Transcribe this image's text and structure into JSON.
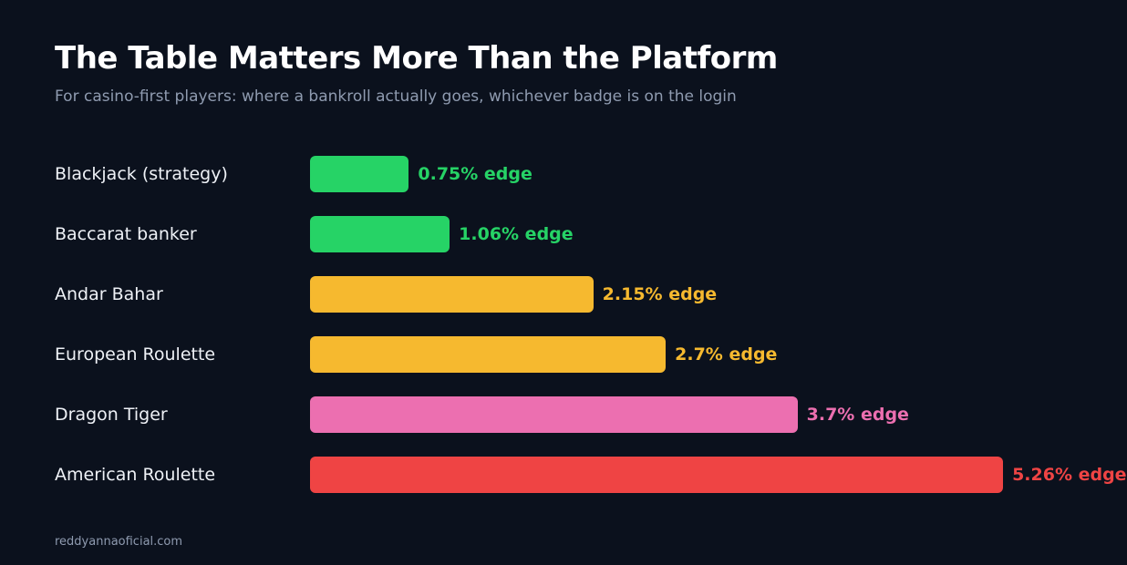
{
  "header": {
    "title": "The Table Matters More Than the Platform",
    "subtitle": "For casino-first players: where a bankroll actually goes, whichever badge is on the login"
  },
  "footer": {
    "source": "reddyannaoficial.com"
  },
  "colors": {
    "background": "#0b111d",
    "green": "#26d366",
    "amber": "#f6b92f",
    "pink": "#ec6fb0",
    "red": "#ef4444"
  },
  "chart_data": {
    "type": "bar",
    "orientation": "horizontal",
    "title": "The Table Matters More Than the Platform",
    "subtitle": "For casino-first players: where a bankroll actually goes, whichever badge is on the login",
    "unit": "% edge",
    "xlim": [
      0,
      5.5
    ],
    "grid": false,
    "categories": [
      "Blackjack (strategy)",
      "Baccarat banker",
      "Andar Bahar",
      "European Roulette",
      "Dragon Tiger",
      "American Roulette"
    ],
    "values": [
      0.75,
      1.06,
      2.15,
      2.7,
      3.7,
      5.26
    ],
    "labels": [
      "0.75% edge",
      "1.06% edge",
      "2.15% edge",
      "2.7% edge",
      "3.7% edge",
      "5.26% edge"
    ],
    "bar_colors": [
      "#26d366",
      "#26d366",
      "#f6b92f",
      "#f6b92f",
      "#ec6fb0",
      "#ef4444"
    ]
  }
}
